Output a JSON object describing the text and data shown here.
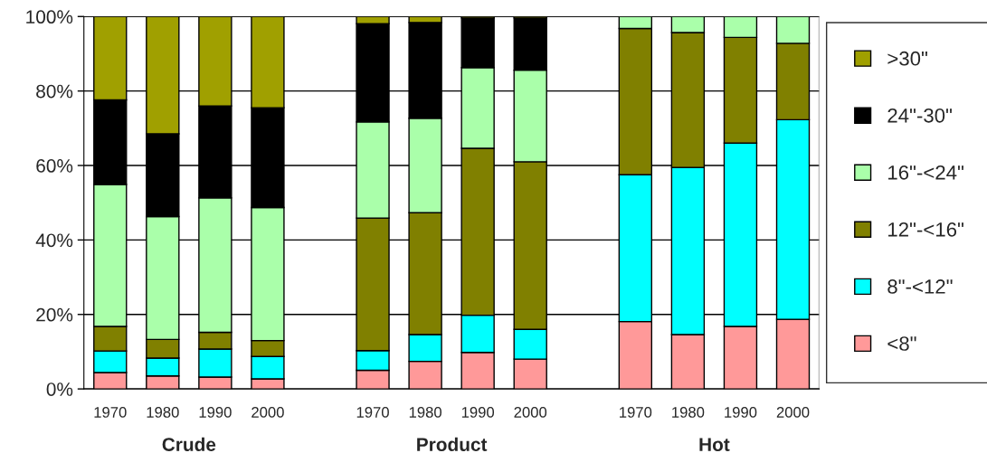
{
  "chart_data": {
    "type": "bar",
    "stacked": true,
    "categories": [
      "1970",
      "1980",
      "1990",
      "2000",
      null,
      "1970",
      "1980",
      "1990",
      "2000",
      null,
      "1970",
      "1980",
      "1990",
      "2000"
    ],
    "series": [
      {
        "name": "<8\"",
        "color": "#ff9999",
        "values": [
          4.4,
          3.5,
          3.2,
          2.7,
          null,
          5.0,
          7.4,
          9.8,
          8.0,
          null,
          18.1,
          14.6,
          16.8,
          18.7
        ]
      },
      {
        "name": "8\"-<12\"",
        "color": "#00ffff",
        "values": [
          5.8,
          4.8,
          7.5,
          6.0,
          null,
          5.3,
          7.2,
          10.0,
          8.0,
          null,
          39.4,
          44.9,
          49.2,
          53.6
        ]
      },
      {
        "name": "12\"-<16\"",
        "color": "#808000",
        "values": [
          6.6,
          5.0,
          4.5,
          4.3,
          null,
          35.6,
          32.7,
          44.8,
          45.0,
          null,
          39.3,
          36.2,
          28.4,
          20.5
        ]
      },
      {
        "name": "16\"-<24\"",
        "color": "#aaffaa",
        "values": [
          38.1,
          33.0,
          36.1,
          35.7,
          null,
          25.8,
          25.4,
          21.7,
          24.6,
          null,
          3.2,
          4.3,
          5.6,
          7.2
        ]
      },
      {
        "name": "24\"-30\"",
        "color": "#000000",
        "values": [
          22.7,
          22.2,
          24.7,
          26.8,
          null,
          26.4,
          25.7,
          13.3,
          14.0,
          null,
          null,
          null,
          null,
          null
        ]
      },
      {
        "name": ">30\"",
        "color": "#a0a000",
        "values": [
          22.4,
          31.5,
          24.0,
          24.5,
          null,
          1.9,
          1.6,
          0.4,
          0.4,
          null,
          null,
          null,
          null,
          null
        ]
      }
    ],
    "ylim": [
      0,
      100
    ],
    "yticks": [
      {
        "value": 0,
        "label": "0%"
      },
      {
        "value": 20,
        "label": "20%"
      },
      {
        "value": 40,
        "label": "40%"
      },
      {
        "value": 60,
        "label": "60%"
      },
      {
        "value": 80,
        "label": "80%"
      },
      {
        "value": 100,
        "label": "100%"
      }
    ],
    "grid": "y",
    "legend": "right",
    "annotations": [
      "Crude",
      "Product",
      "Hot"
    ]
  }
}
